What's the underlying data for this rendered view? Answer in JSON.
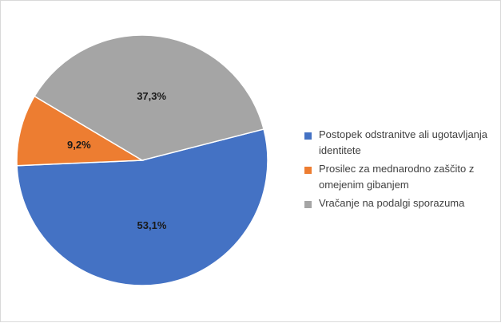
{
  "chart_data": {
    "type": "pie",
    "slices": [
      {
        "label": "Postopek odstranitve ali ugotavljanja identitete",
        "value": 53.1,
        "value_label": "53,1%",
        "color": "#4472C4"
      },
      {
        "label": "Prosilec za mednarodno zaščito z omejenim gibanjem",
        "value": 9.2,
        "value_label": "9,2%",
        "color": "#ED7D31"
      },
      {
        "label": "Vračanje na podalgi sporazuma",
        "value": 37.3,
        "value_label": "37,3%",
        "color": "#A5A5A5"
      }
    ],
    "legend_position": "right",
    "start_angle_deg": 75.6,
    "direction": "clockwise"
  }
}
